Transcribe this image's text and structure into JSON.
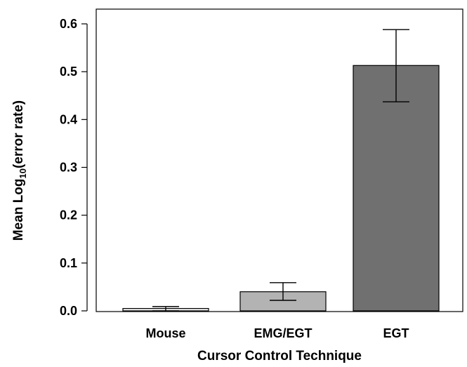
{
  "chart_data": {
    "type": "bar",
    "categories": [
      "Mouse",
      "EMG/EGT",
      "EGT"
    ],
    "values": [
      0.005,
      0.04,
      0.513
    ],
    "error": [
      {
        "low": 0.0,
        "high": 0.009
      },
      {
        "low": 0.022,
        "high": 0.059
      },
      {
        "low": 0.437,
        "high": 0.588
      }
    ],
    "bar_colors": [
      "#f0f0f0",
      "#b3b3b3",
      "#707070"
    ],
    "title": "",
    "xlabel": "Cursor Control Technique",
    "ylabel_prefix": "Mean Log",
    "ylabel_subscript": "10",
    "ylabel_suffix": "(error rate)",
    "ylim": [
      0,
      0.6
    ],
    "y_ticks": [
      "0.0",
      "0.1",
      "0.2",
      "0.3",
      "0.4",
      "0.5",
      "0.6"
    ],
    "grid": false,
    "legend": "none"
  }
}
